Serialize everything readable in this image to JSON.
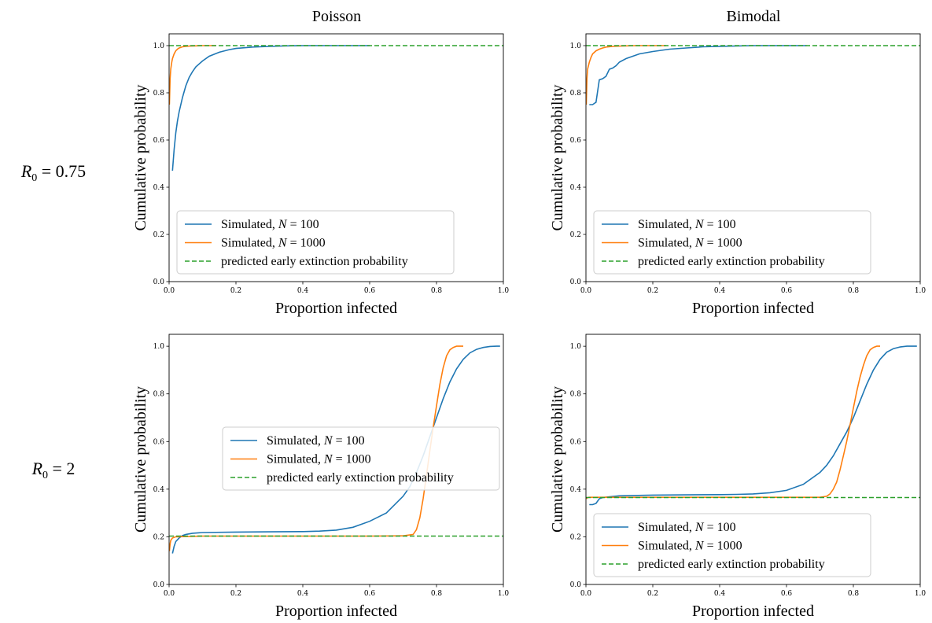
{
  "column_titles": [
    "Poisson",
    "Bimodal"
  ],
  "row_labels": [
    {
      "lhs": "R",
      "sub": "0",
      "rhs": " = 0.75"
    },
    {
      "lhs": "R",
      "sub": "0",
      "rhs": " = 2"
    }
  ],
  "colors": {
    "n100": "#1f77b4",
    "n1000": "#ff7f0e",
    "predicted": "#2ca02c"
  },
  "chart_data": [
    {
      "type": "line",
      "panel": "Poisson, R0 = 0.75",
      "xlabel": "Proportion infected",
      "ylabel": "Cumulative probability",
      "xlim": [
        0,
        1
      ],
      "ylim": [
        0,
        1.05
      ],
      "xticks": [
        "0.0",
        "0.2",
        "0.4",
        "0.6",
        "0.8",
        "1.0"
      ],
      "yticks": [
        "0.0",
        "0.2",
        "0.4",
        "0.6",
        "0.8",
        "1.0"
      ],
      "legend_position": "lower-center",
      "series": [
        {
          "name": "Simulated, N = 100",
          "label_prefix": "Simulated, ",
          "label_var": "N",
          "label_suffix": " = 100",
          "style": "solid",
          "x": [
            0.01,
            0.015,
            0.02,
            0.025,
            0.03,
            0.04,
            0.05,
            0.06,
            0.07,
            0.08,
            0.1,
            0.12,
            0.15,
            0.18,
            0.2,
            0.25,
            0.3,
            0.35,
            0.4,
            0.5,
            0.6
          ],
          "y": [
            0.47,
            0.56,
            0.63,
            0.68,
            0.72,
            0.78,
            0.83,
            0.865,
            0.89,
            0.91,
            0.935,
            0.955,
            0.972,
            0.983,
            0.988,
            0.994,
            0.997,
            0.999,
            1.0,
            1.0,
            1.0
          ]
        },
        {
          "name": "Simulated, N = 1000",
          "label_prefix": "Simulated, ",
          "label_var": "N",
          "label_suffix": " = 1000",
          "style": "solid",
          "x": [
            0.001,
            0.003,
            0.005,
            0.008,
            0.01,
            0.015,
            0.02,
            0.025,
            0.03,
            0.04,
            0.05,
            0.06,
            0.08,
            0.1,
            0.12,
            0.14
          ],
          "y": [
            0.75,
            0.86,
            0.9,
            0.93,
            0.945,
            0.965,
            0.978,
            0.985,
            0.99,
            0.995,
            0.997,
            0.998,
            0.999,
            1.0,
            1.0,
            1.0
          ]
        },
        {
          "name": "predicted early extinction probability",
          "label_prefix": "predicted early extinction probability",
          "label_var": "",
          "label_suffix": "",
          "style": "dashed",
          "x": [
            0,
            1
          ],
          "y": [
            1.0,
            1.0
          ]
        }
      ]
    },
    {
      "type": "line",
      "panel": "Bimodal, R0 = 0.75",
      "xlabel": "Proportion infected",
      "ylabel": "Cumulative probability",
      "xlim": [
        0,
        1
      ],
      "ylim": [
        0,
        1.05
      ],
      "xticks": [
        "0.0",
        "0.2",
        "0.4",
        "0.6",
        "0.8",
        "1.0"
      ],
      "yticks": [
        "0.0",
        "0.2",
        "0.4",
        "0.6",
        "0.8",
        "1.0"
      ],
      "legend_position": "lower-center",
      "series": [
        {
          "name": "Simulated, N = 100",
          "label_prefix": "Simulated, ",
          "label_var": "N",
          "label_suffix": " = 100",
          "style": "solid",
          "x": [
            0.01,
            0.02,
            0.025,
            0.03,
            0.04,
            0.05,
            0.06,
            0.07,
            0.08,
            0.09,
            0.1,
            0.12,
            0.14,
            0.16,
            0.2,
            0.25,
            0.3,
            0.35,
            0.4,
            0.5,
            0.6,
            0.66
          ],
          "y": [
            0.75,
            0.75,
            0.755,
            0.76,
            0.855,
            0.86,
            0.87,
            0.9,
            0.905,
            0.915,
            0.93,
            0.945,
            0.955,
            0.965,
            0.975,
            0.985,
            0.99,
            0.995,
            0.997,
            1.0,
            1.0,
            1.0
          ]
        },
        {
          "name": "Simulated, N = 1000",
          "label_prefix": "Simulated, ",
          "label_var": "N",
          "label_suffix": " = 1000",
          "style": "solid",
          "x": [
            0.001,
            0.003,
            0.005,
            0.01,
            0.015,
            0.02,
            0.03,
            0.04,
            0.05,
            0.06,
            0.08,
            0.1,
            0.15,
            0.2,
            0.24
          ],
          "y": [
            0.75,
            0.86,
            0.9,
            0.93,
            0.95,
            0.965,
            0.978,
            0.985,
            0.99,
            0.994,
            0.997,
            0.998,
            1.0,
            1.0,
            1.0
          ]
        },
        {
          "name": "predicted early extinction probability",
          "label_prefix": "predicted early extinction probability",
          "label_var": "",
          "label_suffix": "",
          "style": "dashed",
          "x": [
            0,
            1
          ],
          "y": [
            1.0,
            1.0
          ]
        }
      ]
    },
    {
      "type": "line",
      "panel": "Poisson, R0 = 2",
      "xlabel": "Proportion infected",
      "ylabel": "Cumulative probability",
      "xlim": [
        0,
        1
      ],
      "ylim": [
        0,
        1.05
      ],
      "xticks": [
        "0.0",
        "0.2",
        "0.4",
        "0.6",
        "0.8",
        "1.0"
      ],
      "yticks": [
        "0.0",
        "0.2",
        "0.4",
        "0.6",
        "0.8",
        "1.0"
      ],
      "legend_position": "center",
      "series": [
        {
          "name": "Simulated, N = 100",
          "label_prefix": "Simulated, ",
          "label_var": "N",
          "label_suffix": " = 100",
          "style": "solid",
          "x": [
            0.01,
            0.015,
            0.02,
            0.03,
            0.04,
            0.05,
            0.07,
            0.1,
            0.2,
            0.3,
            0.4,
            0.45,
            0.5,
            0.55,
            0.6,
            0.65,
            0.7,
            0.72,
            0.74,
            0.76,
            0.78,
            0.8,
            0.82,
            0.84,
            0.86,
            0.88,
            0.9,
            0.92,
            0.94,
            0.96,
            0.98,
            0.99
          ],
          "y": [
            0.13,
            0.16,
            0.18,
            0.195,
            0.205,
            0.21,
            0.215,
            0.218,
            0.22,
            0.221,
            0.222,
            0.224,
            0.228,
            0.24,
            0.265,
            0.3,
            0.37,
            0.41,
            0.47,
            0.54,
            0.62,
            0.7,
            0.78,
            0.85,
            0.905,
            0.945,
            0.972,
            0.987,
            0.995,
            0.999,
            1.0,
            1.0
          ]
        },
        {
          "name": "Simulated, N = 1000",
          "label_prefix": "Simulated, ",
          "label_var": "N",
          "label_suffix": " = 1000",
          "style": "solid",
          "x": [
            0.001,
            0.003,
            0.005,
            0.01,
            0.02,
            0.1,
            0.2,
            0.4,
            0.6,
            0.7,
            0.73,
            0.74,
            0.75,
            0.76,
            0.77,
            0.78,
            0.79,
            0.8,
            0.81,
            0.82,
            0.83,
            0.84,
            0.85,
            0.86,
            0.87,
            0.88
          ],
          "y": [
            0.14,
            0.17,
            0.185,
            0.195,
            0.2,
            0.203,
            0.203,
            0.203,
            0.203,
            0.204,
            0.21,
            0.23,
            0.28,
            0.36,
            0.46,
            0.56,
            0.66,
            0.75,
            0.84,
            0.91,
            0.96,
            0.985,
            0.995,
            1.0,
            1.0,
            1.0
          ]
        },
        {
          "name": "predicted early extinction probability",
          "label_prefix": "predicted early extinction probability",
          "label_var": "",
          "label_suffix": "",
          "style": "dashed",
          "x": [
            0,
            1
          ],
          "y": [
            0.203,
            0.203
          ]
        }
      ]
    },
    {
      "type": "line",
      "panel": "Bimodal, R0 = 2",
      "xlabel": "Proportion infected",
      "ylabel": "Cumulative probability",
      "xlim": [
        0,
        1
      ],
      "ylim": [
        0,
        1.05
      ],
      "xticks": [
        "0.0",
        "0.2",
        "0.4",
        "0.6",
        "0.8",
        "1.0"
      ],
      "yticks": [
        "0.0",
        "0.2",
        "0.4",
        "0.6",
        "0.8",
        "1.0"
      ],
      "legend_position": "lower-center",
      "series": [
        {
          "name": "Simulated, N = 100",
          "label_prefix": "Simulated, ",
          "label_var": "N",
          "label_suffix": " = 100",
          "style": "solid",
          "x": [
            0.01,
            0.02,
            0.03,
            0.04,
            0.05,
            0.07,
            0.1,
            0.2,
            0.3,
            0.4,
            0.45,
            0.5,
            0.55,
            0.6,
            0.65,
            0.7,
            0.72,
            0.74,
            0.76,
            0.78,
            0.8,
            0.82,
            0.84,
            0.86,
            0.88,
            0.9,
            0.92,
            0.94,
            0.96,
            0.98,
            0.99
          ],
          "y": [
            0.335,
            0.335,
            0.34,
            0.36,
            0.365,
            0.368,
            0.372,
            0.375,
            0.376,
            0.377,
            0.378,
            0.38,
            0.385,
            0.395,
            0.42,
            0.47,
            0.5,
            0.54,
            0.59,
            0.64,
            0.7,
            0.77,
            0.84,
            0.9,
            0.945,
            0.975,
            0.99,
            0.997,
            1.0,
            1.0,
            1.0
          ]
        },
        {
          "name": "Simulated, N = 1000",
          "label_prefix": "Simulated, ",
          "label_var": "N",
          "label_suffix": " = 1000",
          "style": "solid",
          "x": [
            0.001,
            0.005,
            0.01,
            0.02,
            0.1,
            0.3,
            0.5,
            0.7,
            0.72,
            0.73,
            0.74,
            0.75,
            0.76,
            0.77,
            0.78,
            0.79,
            0.8,
            0.81,
            0.82,
            0.83,
            0.84,
            0.85,
            0.86,
            0.87,
            0.88
          ],
          "y": [
            0.36,
            0.365,
            0.366,
            0.366,
            0.366,
            0.366,
            0.366,
            0.366,
            0.37,
            0.38,
            0.4,
            0.43,
            0.48,
            0.54,
            0.6,
            0.67,
            0.74,
            0.81,
            0.87,
            0.92,
            0.96,
            0.985,
            0.995,
            1.0,
            1.0
          ]
        },
        {
          "name": "predicted early extinction probability",
          "label_prefix": "predicted early extinction probability",
          "label_var": "",
          "label_suffix": "",
          "style": "dashed",
          "x": [
            0,
            1
          ],
          "y": [
            0.365,
            0.365
          ]
        }
      ]
    }
  ]
}
